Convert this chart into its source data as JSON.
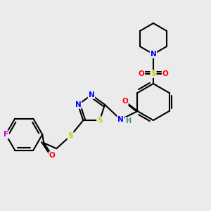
{
  "bg_color": "#ebebeb",
  "atom_colors": {
    "C": "#000000",
    "N": "#0000ff",
    "O": "#ff0000",
    "S": "#cccc00",
    "F": "#cc00cc",
    "H": "#4a8888"
  },
  "bond_color": "#000000",
  "bond_width": 1.5
}
